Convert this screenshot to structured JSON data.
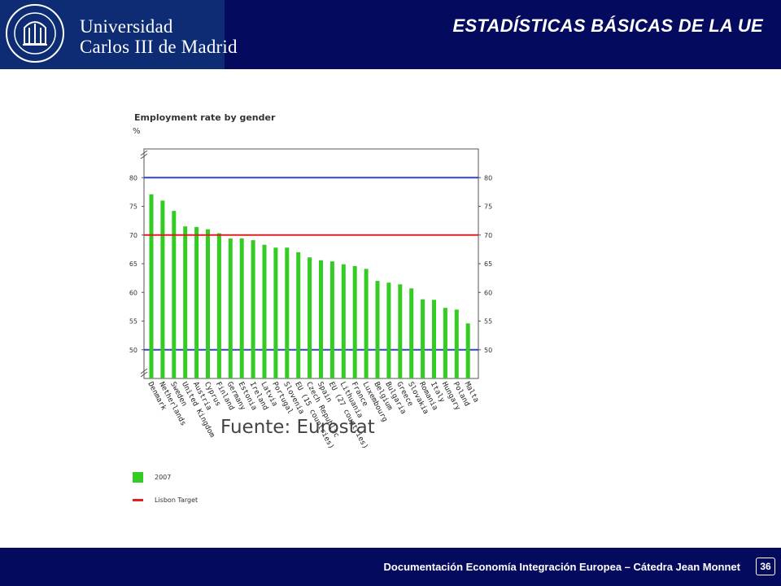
{
  "header": {
    "university_line1": "Universidad",
    "university_line2": "Carlos III de Madrid",
    "slide_title": "ESTADÍSTICAS BÁSICAS DE LA UE"
  },
  "source_label": "Fuente:  Eurostat",
  "legend": {
    "bars_label": "2007",
    "line_label": "Lisbon Target"
  },
  "footer": {
    "text": "Documentación Economía Integración Europea – Cátedra Jean Monnet",
    "page_number": "36"
  },
  "colors": {
    "header_bg": "#040a5e",
    "bar": "#33cc22",
    "lisbon_line": "#e02020",
    "reference_line": "#3344cc"
  },
  "chart_data": {
    "type": "bar",
    "title": "Employment rate by gender",
    "ylabel": "%",
    "ylim": [
      45,
      85
    ],
    "yticks": [
      50,
      55,
      60,
      65,
      70,
      75,
      80
    ],
    "categories": [
      "Denmark",
      "Netherlands",
      "Sweden",
      "United Kingdom",
      "Austria",
      "Cyprus",
      "Finland",
      "Germany",
      "Estonia",
      "Ireland",
      "Latvia",
      "Portugal",
      "Slovenia",
      "EU (15 countries)",
      "Czech Republic",
      "Spain",
      "EU (27 countries)",
      "Lithuania",
      "France",
      "Luxembourg",
      "Belgium",
      "Bulgaria",
      "Greece",
      "Slovakia",
      "Romania",
      "Italy",
      "Hungary",
      "Poland",
      "Malta"
    ],
    "series": [
      {
        "values": [
          77.1,
          76.0,
          74.2,
          71.5,
          71.4,
          71.0,
          70.3,
          69.4,
          69.4,
          69.1,
          68.3,
          67.8,
          67.8,
          67.0,
          66.1,
          65.6,
          65.4,
          64.9,
          64.6,
          64.1,
          62.0,
          61.7,
          61.4,
          60.7,
          58.8,
          58.7,
          57.3,
          57.0,
          54.6
        ]
      }
    ],
    "lisbon_target": 70,
    "reference_lines": [
      80,
      50
    ],
    "legend_position": "bottom-left"
  }
}
